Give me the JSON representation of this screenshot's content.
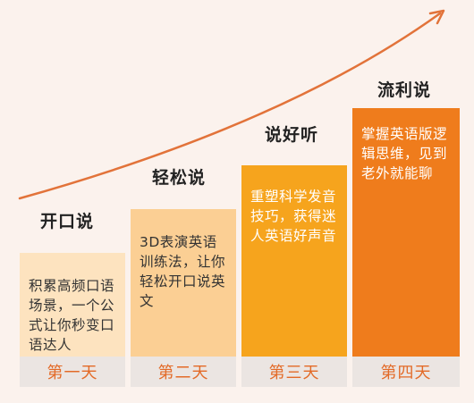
{
  "colors": {
    "background": "#fbf2ed",
    "curve": "#e2733a",
    "day_label_bg": "#ebe5e2",
    "day_label_text": "#e36a27"
  },
  "stages": [
    {
      "title": "开口说",
      "description": "积累高频口语场景，一个公式让你秒变口语达人",
      "day": "第一天",
      "bar_color": "#fde3bf"
    },
    {
      "title": "轻松说",
      "description": "3D表演英语训练法，让你轻松开口说英文",
      "day": "第二天",
      "bar_color": "#fbcf94"
    },
    {
      "title": "说好听",
      "description": "重塑科学发音技巧，获得迷人英语好声音",
      "day": "第三天",
      "bar_color": "#f6a41d"
    },
    {
      "title": "流利说",
      "description": "掌握英语版逻辑思维，见到老外就能聊",
      "day": "第四天",
      "bar_color": "#ef7c1c"
    }
  ]
}
